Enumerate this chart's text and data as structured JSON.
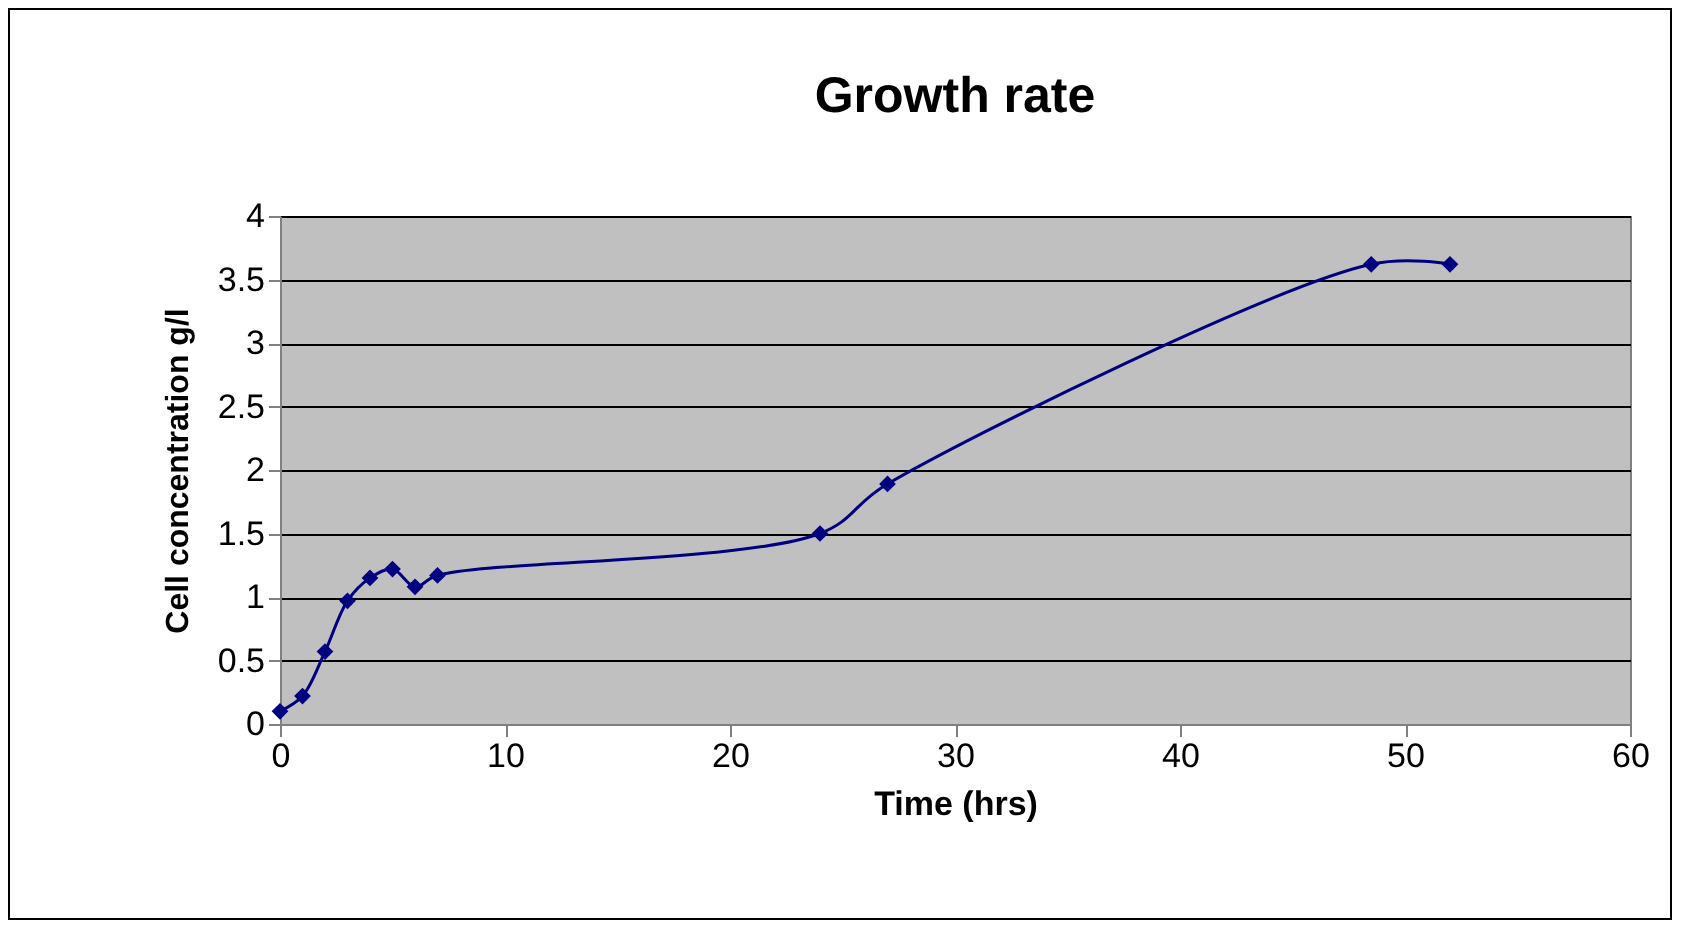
{
  "chart_data": {
    "type": "line",
    "title": "Growth rate",
    "xlabel": "Time (hrs)",
    "ylabel": "Cell concentration g/l",
    "x": [
      0,
      1,
      2,
      3,
      4,
      5,
      6,
      7,
      24,
      27,
      48.5,
      52
    ],
    "series": [
      {
        "color": "#000080",
        "values": [
          0.1,
          0.22,
          0.57,
          0.97,
          1.15,
          1.22,
          1.08,
          1.17,
          1.5,
          1.89,
          3.62,
          3.62
        ]
      }
    ],
    "xlim": [
      0,
      60
    ],
    "xticks": [
      0,
      10,
      20,
      30,
      40,
      50,
      60
    ],
    "ylim": [
      0,
      4
    ],
    "yticks": [
      0,
      0.5,
      1,
      1.5,
      2,
      2.5,
      3,
      3.5,
      4
    ],
    "grid": "y",
    "marker": "diamond",
    "line_style": "solid"
  }
}
